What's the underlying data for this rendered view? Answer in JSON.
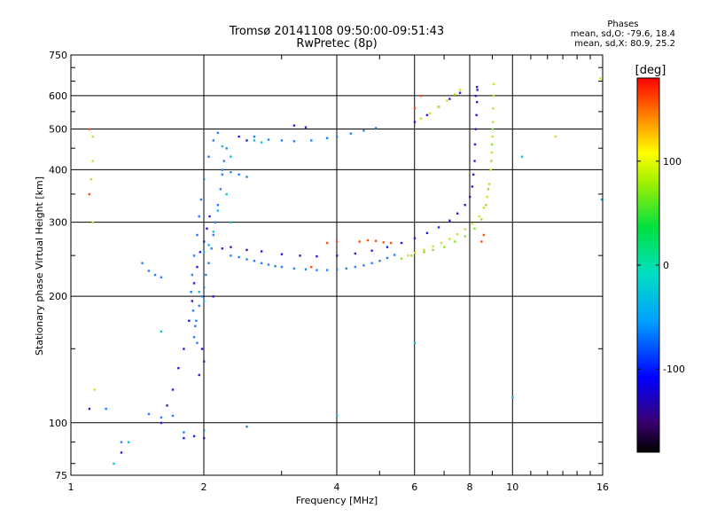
{
  "header": {
    "title_line1": "Tromsø 20141108 09:50:00-09:51:43",
    "title_line2": "RwPretec (8p)"
  },
  "phases": {
    "title": "Phases",
    "line_o": "mean, sd,O: -79.6, 18.4",
    "line_x": "mean, sd,X:  80.9, 25.2"
  },
  "colorbar": {
    "unit": "[deg]",
    "ticks": [
      {
        "value": 100,
        "label": "100"
      },
      {
        "value": 0,
        "label": "0"
      },
      {
        "value": -100,
        "label": "-100"
      }
    ],
    "range": [
      -180,
      180
    ]
  },
  "chart_data": {
    "type": "scatter",
    "title": "Tromsø 20141108 09:50:00-09:51:43",
    "subtitle": "RwPretec (8p)",
    "xlabel": "Frequency [MHz]",
    "ylabel": "Stationary phase Virtual Height [km]",
    "xscale": "log",
    "yscale": "log",
    "xlim": [
      1,
      16
    ],
    "ylim": [
      75,
      750
    ],
    "grid": true,
    "xticks": [
      {
        "value": 1,
        "label": "1"
      },
      {
        "value": 2,
        "label": "2"
      },
      {
        "value": 4,
        "label": "4"
      },
      {
        "value": 6,
        "label": "6"
      },
      {
        "value": 8,
        "label": "8"
      },
      {
        "value": 10,
        "label": "10"
      },
      {
        "value": 16,
        "label": "16"
      }
    ],
    "yticks": [
      {
        "value": 75,
        "label": "75"
      },
      {
        "value": 100,
        "label": "100"
      },
      {
        "value": 200,
        "label": "200"
      },
      {
        "value": 300,
        "label": "300"
      },
      {
        "value": 400,
        "label": "400"
      },
      {
        "value": 500,
        "label": "500"
      },
      {
        "value": 600,
        "label": "600"
      },
      {
        "value": 750,
        "label": "750"
      }
    ],
    "series": [
      {
        "points": [
          [
            1.9,
            160
          ],
          [
            1.92,
            175
          ],
          [
            1.95,
            190
          ],
          [
            1.98,
            200
          ],
          [
            2.0,
            210
          ],
          [
            2.02,
            225
          ],
          [
            2.05,
            240
          ],
          [
            2.08,
            260
          ],
          [
            2.1,
            280
          ],
          [
            2.12,
            300
          ],
          [
            2.15,
            330
          ],
          [
            2.18,
            360
          ],
          [
            2.2,
            390
          ],
          [
            2.22,
            420
          ],
          [
            2.25,
            450
          ],
          [
            2.15,
            490
          ],
          [
            2.1,
            470
          ],
          [
            2.05,
            430
          ],
          [
            2.0,
            380
          ],
          [
            1.97,
            340
          ],
          [
            1.95,
            310
          ],
          [
            1.93,
            280
          ],
          [
            1.9,
            250
          ],
          [
            1.88,
            225
          ],
          [
            1.87,
            205
          ],
          [
            1.89,
            185
          ],
          [
            1.91,
            170
          ],
          [
            1.93,
            155
          ],
          [
            2.3,
            250
          ],
          [
            2.4,
            248
          ],
          [
            2.5,
            245
          ],
          [
            2.6,
            243
          ],
          [
            2.7,
            240
          ],
          [
            2.8,
            238
          ],
          [
            2.9,
            236
          ],
          [
            3.0,
            235
          ],
          [
            3.2,
            233
          ],
          [
            3.4,
            232
          ],
          [
            3.6,
            231
          ],
          [
            3.8,
            231
          ],
          [
            4.0,
            232
          ],
          [
            4.2,
            233
          ],
          [
            4.4,
            235
          ],
          [
            4.6,
            237
          ],
          [
            4.8,
            240
          ],
          [
            5.0,
            243
          ],
          [
            5.2,
            247
          ],
          [
            5.4,
            251
          ],
          [
            2.6,
            480
          ],
          [
            2.8,
            472
          ],
          [
            3.0,
            470
          ],
          [
            3.2,
            468
          ],
          [
            3.5,
            470
          ],
          [
            3.8,
            476
          ],
          [
            4.0,
            480
          ],
          [
            4.3,
            488
          ],
          [
            4.6,
            496
          ],
          [
            4.9,
            503
          ],
          [
            1.45,
            240
          ],
          [
            1.5,
            230
          ],
          [
            1.55,
            225
          ],
          [
            1.6,
            222
          ],
          [
            1.5,
            105
          ],
          [
            1.6,
            103
          ],
          [
            1.7,
            104
          ],
          [
            1.2,
            108
          ],
          [
            1.3,
            90
          ],
          [
            1.8,
            95
          ],
          [
            2.0,
            96
          ],
          [
            2.5,
            98
          ],
          [
            2.2,
            400
          ],
          [
            2.3,
            395
          ],
          [
            2.4,
            390
          ],
          [
            2.5,
            385
          ]
        ],
        "color": "#2080ff"
      },
      {
        "points": [
          [
            1.85,
            175
          ],
          [
            1.88,
            195
          ],
          [
            1.9,
            215
          ],
          [
            1.93,
            235
          ],
          [
            1.96,
            255
          ],
          [
            2.0,
            270
          ],
          [
            2.03,
            290
          ],
          [
            2.06,
            310
          ],
          [
            1.98,
            150
          ],
          [
            2.0,
            140
          ],
          [
            1.95,
            130
          ],
          [
            2.1,
            200
          ],
          [
            2.2,
            260
          ],
          [
            2.3,
            262
          ],
          [
            2.5,
            258
          ],
          [
            2.7,
            256
          ],
          [
            3.0,
            252
          ],
          [
            3.3,
            250
          ],
          [
            3.6,
            249
          ],
          [
            4.0,
            250
          ],
          [
            4.4,
            253
          ],
          [
            4.8,
            257
          ],
          [
            5.2,
            262
          ],
          [
            5.6,
            268
          ],
          [
            6.0,
            275
          ],
          [
            6.4,
            283
          ],
          [
            6.8,
            292
          ],
          [
            7.2,
            303
          ],
          [
            7.5,
            315
          ],
          [
            7.8,
            330
          ],
          [
            8.0,
            345
          ],
          [
            8.1,
            365
          ],
          [
            8.15,
            390
          ],
          [
            8.2,
            420
          ],
          [
            8.22,
            460
          ],
          [
            8.25,
            500
          ],
          [
            8.28,
            540
          ],
          [
            8.3,
            580
          ],
          [
            8.32,
            620
          ],
          [
            6.0,
            520
          ],
          [
            6.4,
            540
          ],
          [
            6.8,
            565
          ],
          [
            7.2,
            590
          ],
          [
            7.6,
            610
          ],
          [
            3.2,
            510
          ],
          [
            3.4,
            505
          ],
          [
            2.4,
            480
          ],
          [
            2.5,
            470
          ],
          [
            1.8,
            150
          ],
          [
            1.75,
            135
          ],
          [
            1.7,
            120
          ],
          [
            1.65,
            110
          ],
          [
            1.6,
            100
          ],
          [
            1.8,
            92
          ],
          [
            1.9,
            93
          ],
          [
            2.0,
            92
          ],
          [
            1.3,
            85
          ],
          [
            1.1,
            108
          ],
          [
            8.3,
            630
          ],
          [
            8.25,
            600
          ]
        ],
        "color": "#2020e0"
      },
      {
        "points": [
          [
            4.5,
            270
          ],
          [
            4.7,
            272
          ],
          [
            4.9,
            271
          ],
          [
            5.1,
            269
          ],
          [
            5.3,
            268
          ],
          [
            3.8,
            268
          ],
          [
            4.0,
            270
          ],
          [
            6.2,
            600
          ],
          [
            3.5,
            235
          ],
          [
            6.0,
            560
          ],
          [
            8.5,
            270
          ],
          [
            8.6,
            280
          ],
          [
            1.1,
            500
          ],
          [
            1.1,
            350
          ]
        ],
        "color": "#ff5010"
      },
      {
        "points": [
          [
            5.8,
            250
          ],
          [
            6.0,
            254
          ],
          [
            6.3,
            258
          ],
          [
            6.6,
            263
          ],
          [
            6.9,
            268
          ],
          [
            7.2,
            274
          ],
          [
            7.5,
            281
          ],
          [
            7.8,
            289
          ],
          [
            8.1,
            298
          ],
          [
            8.4,
            310
          ],
          [
            8.6,
            325
          ],
          [
            8.75,
            345
          ],
          [
            8.85,
            370
          ],
          [
            8.92,
            400
          ],
          [
            8.97,
            440
          ],
          [
            9.0,
            480
          ],
          [
            9.02,
            520
          ],
          [
            9.03,
            560
          ],
          [
            9.05,
            600
          ],
          [
            9.06,
            640
          ],
          [
            6.2,
            530
          ],
          [
            6.5,
            545
          ],
          [
            6.8,
            565
          ],
          [
            7.1,
            585
          ],
          [
            7.4,
            605
          ],
          [
            7.6,
            620
          ],
          [
            1.12,
            480
          ],
          [
            1.12,
            420
          ],
          [
            1.11,
            380
          ],
          [
            1.12,
            300
          ],
          [
            1.13,
            120
          ],
          [
            12.5,
            480
          ],
          [
            15.8,
            660
          ]
        ],
        "color": "#d0e020"
      },
      {
        "points": [
          [
            6.3,
            255
          ],
          [
            6.6,
            258
          ],
          [
            7.0,
            262
          ],
          [
            7.4,
            270
          ],
          [
            7.8,
            278
          ],
          [
            8.2,
            290
          ],
          [
            8.5,
            305
          ],
          [
            8.7,
            330
          ],
          [
            8.8,
            360
          ],
          [
            5.6,
            246
          ],
          [
            5.9,
            250
          ],
          [
            8.95,
            420
          ],
          [
            8.98,
            460
          ],
          [
            9.0,
            500
          ]
        ],
        "color": "#90e030"
      },
      {
        "points": [
          [
            2.0,
            255
          ],
          [
            2.05,
            265
          ],
          [
            2.1,
            285
          ],
          [
            2.15,
            320
          ],
          [
            2.25,
            350
          ],
          [
            2.3,
            300
          ],
          [
            2.0,
            195
          ],
          [
            1.95,
            205
          ],
          [
            2.6,
            470
          ],
          [
            2.7,
            465
          ],
          [
            1.6,
            165
          ],
          [
            2.2,
            455
          ],
          [
            2.3,
            430
          ],
          [
            4.0,
            104
          ],
          [
            10.5,
            430
          ],
          [
            15.9,
            340
          ],
          [
            10.0,
            115
          ],
          [
            6.0,
            155
          ],
          [
            1.35,
            90
          ],
          [
            1.25,
            80
          ]
        ],
        "color": "#10c0e0"
      }
    ]
  }
}
